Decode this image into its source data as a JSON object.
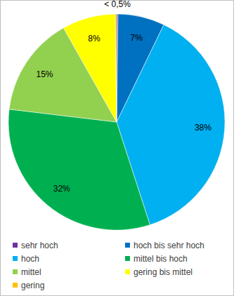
{
  "chart_data": {
    "type": "pie",
    "categories": [
      "sehr hoch",
      "hoch bis sehr hoch",
      "hoch",
      "mittel bis hoch",
      "mittel",
      "gering bis mittel",
      "gering"
    ],
    "values": [
      0.2,
      7,
      38,
      32,
      15,
      8,
      0.2
    ],
    "value_labels": [
      "< 0,5%",
      "7%",
      "38%",
      "32%",
      "15%",
      "8%",
      null
    ],
    "colors": [
      "#7030a0",
      "#0070c0",
      "#00b0f0",
      "#00b050",
      "#92d050",
      "#ffff00",
      "#ffc000"
    ],
    "data_labels": true,
    "legend": "bottom"
  }
}
